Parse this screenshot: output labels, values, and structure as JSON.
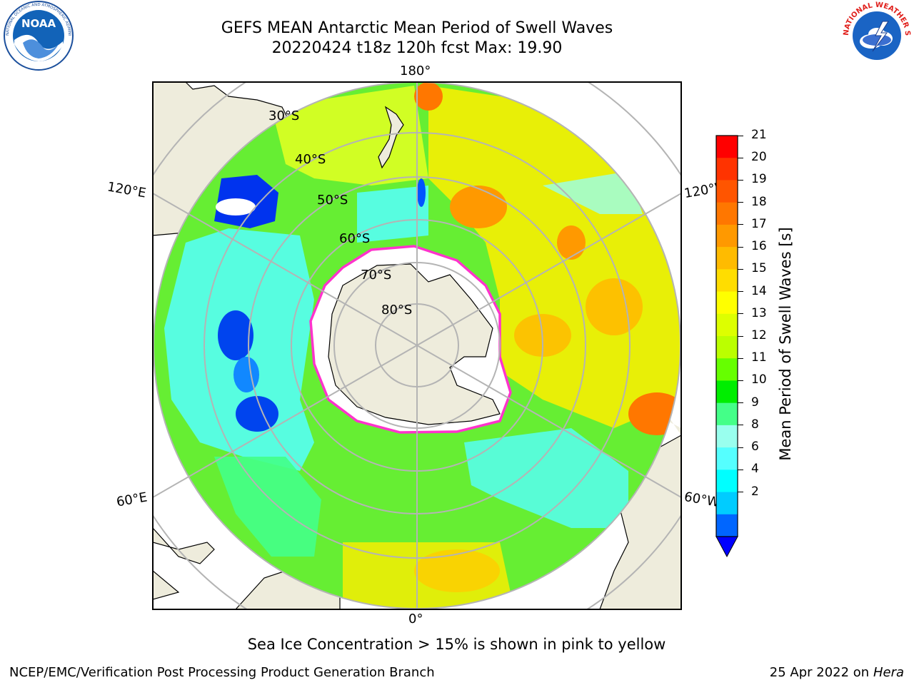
{
  "header": {
    "title": "GEFS MEAN Antarctic Mean Period of Swell Waves",
    "subtitle": "20220424 t18z 120h fcst   Max: 19.90",
    "left_logo_text": "NOAA",
    "left_logo_ring_text": "NATIONAL OCEANIC AND ATMOSPHERIC ADMINISTRATION · U.S. DEPARTMENT OF COMMERCE",
    "right_logo_ring_text": "NATIONAL WEATHER SERVICE"
  },
  "map": {
    "projection": "south-polar-stereographic",
    "meridian_labels": {
      "top": "180°",
      "bottom": "0°",
      "left_upper": "120°E",
      "left_lower": "60°E",
      "right_upper": "120°W",
      "right_lower": "60°W"
    },
    "latitude_labels": [
      "30°S",
      "40°S",
      "50°S",
      "60°S",
      "70°S",
      "80°S"
    ],
    "colors": {
      "land": "#eeecdc",
      "ice": "#ffffff",
      "ice_edge": "#ff33cc",
      "grid": "#b4b4b4"
    }
  },
  "colorbar": {
    "label": "Mean Period of Swell Waves [s]",
    "ticks": [
      "21",
      "20",
      "19",
      "18",
      "17",
      "16",
      "15",
      "14",
      "13",
      "12",
      "11",
      "10",
      "9",
      "8",
      "6",
      "4",
      "2"
    ],
    "colors": [
      "#ff0000",
      "#ff3300",
      "#ff5500",
      "#ff7700",
      "#ff9900",
      "#ffbb00",
      "#ffdd00",
      "#ffff00",
      "#ddff00",
      "#bbff00",
      "#66ff00",
      "#00ee00",
      "#44ff88",
      "#99ffee",
      "#55ffff",
      "#00ffff",
      "#00ccff",
      "#0066ff"
    ],
    "extend": "min",
    "extend_color": "#0000ff"
  },
  "caption": "Sea Ice Concentration > 15% is shown in pink to yellow",
  "footer": {
    "left": "NCEP/EMC/Verification Post Processing Product Generation Branch",
    "right_prefix": "25 Apr 2022 on ",
    "right_host": "Hera"
  }
}
